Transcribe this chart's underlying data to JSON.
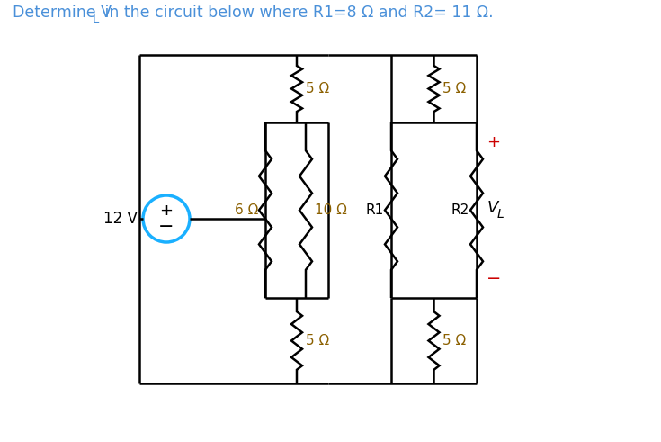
{
  "bg_color": "#ffffff",
  "wire_color": "#000000",
  "resistor_color": "#000000",
  "source_color": "#1ab0ff",
  "label_color": "#8B6000",
  "red_color": "#cc0000",
  "title_color": "#4a90d9",
  "fig_w": 7.35,
  "fig_h": 4.91,
  "title_text": "Determine V",
  "title_sub": "L",
  "title_rest": " in the circuit below where R1=8 Ω and R2= 11 Ω.",
  "label_6": "6 Ω",
  "label_10": "10 Ω",
  "label_5a": "5 Ω",
  "label_5b": "5 Ω",
  "label_5c": "5 Ω",
  "label_5d": "5 Ω",
  "label_R1": "R1",
  "label_R2": "R2",
  "label_VL_V": "V",
  "label_VL_L": "L",
  "label_plus": "+",
  "label_minus": "−",
  "label_12V": "12 V",
  "src_plus": "+",
  "src_minus": "−"
}
